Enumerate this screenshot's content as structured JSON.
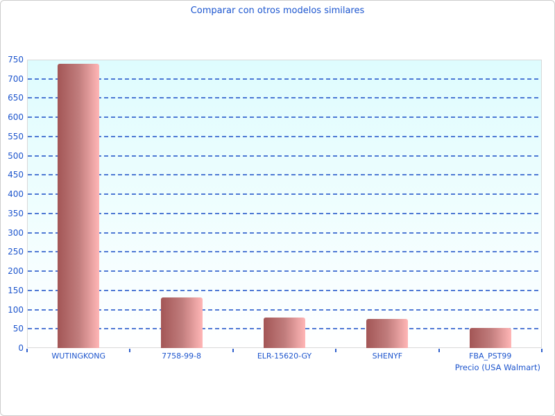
{
  "chart_data": {
    "type": "bar",
    "title": "Comparar con otros modelos similares",
    "categories": [
      "WUTINGKONG",
      "7758-99-8",
      "ELR-15620-GY",
      "SHENYF",
      "FBA_PST99"
    ],
    "values": [
      740,
      131,
      80,
      76,
      52
    ],
    "xlabel": "Precio (USA Walmart)",
    "ylabel": "",
    "ylim": [
      0,
      750
    ],
    "ytick_step": 50,
    "yticks": [
      0,
      50,
      100,
      150,
      200,
      250,
      300,
      350,
      400,
      450,
      500,
      550,
      600,
      650,
      700,
      750
    ],
    "grid": "horizontal-dashed",
    "legend": "none"
  },
  "colors": {
    "title_text": "#1b55cf",
    "axis_text": "#1d55cd",
    "gridline": "#3060cc",
    "bar_dark": "#a35656",
    "bar_mid": "#c07c7c",
    "bar_light": "#ffb6b6",
    "plot_bg_top": "#defcfe",
    "plot_bg_bottom": "#ffffff",
    "plot_border": "#d8d8d8",
    "card_border": "#cccccc"
  }
}
